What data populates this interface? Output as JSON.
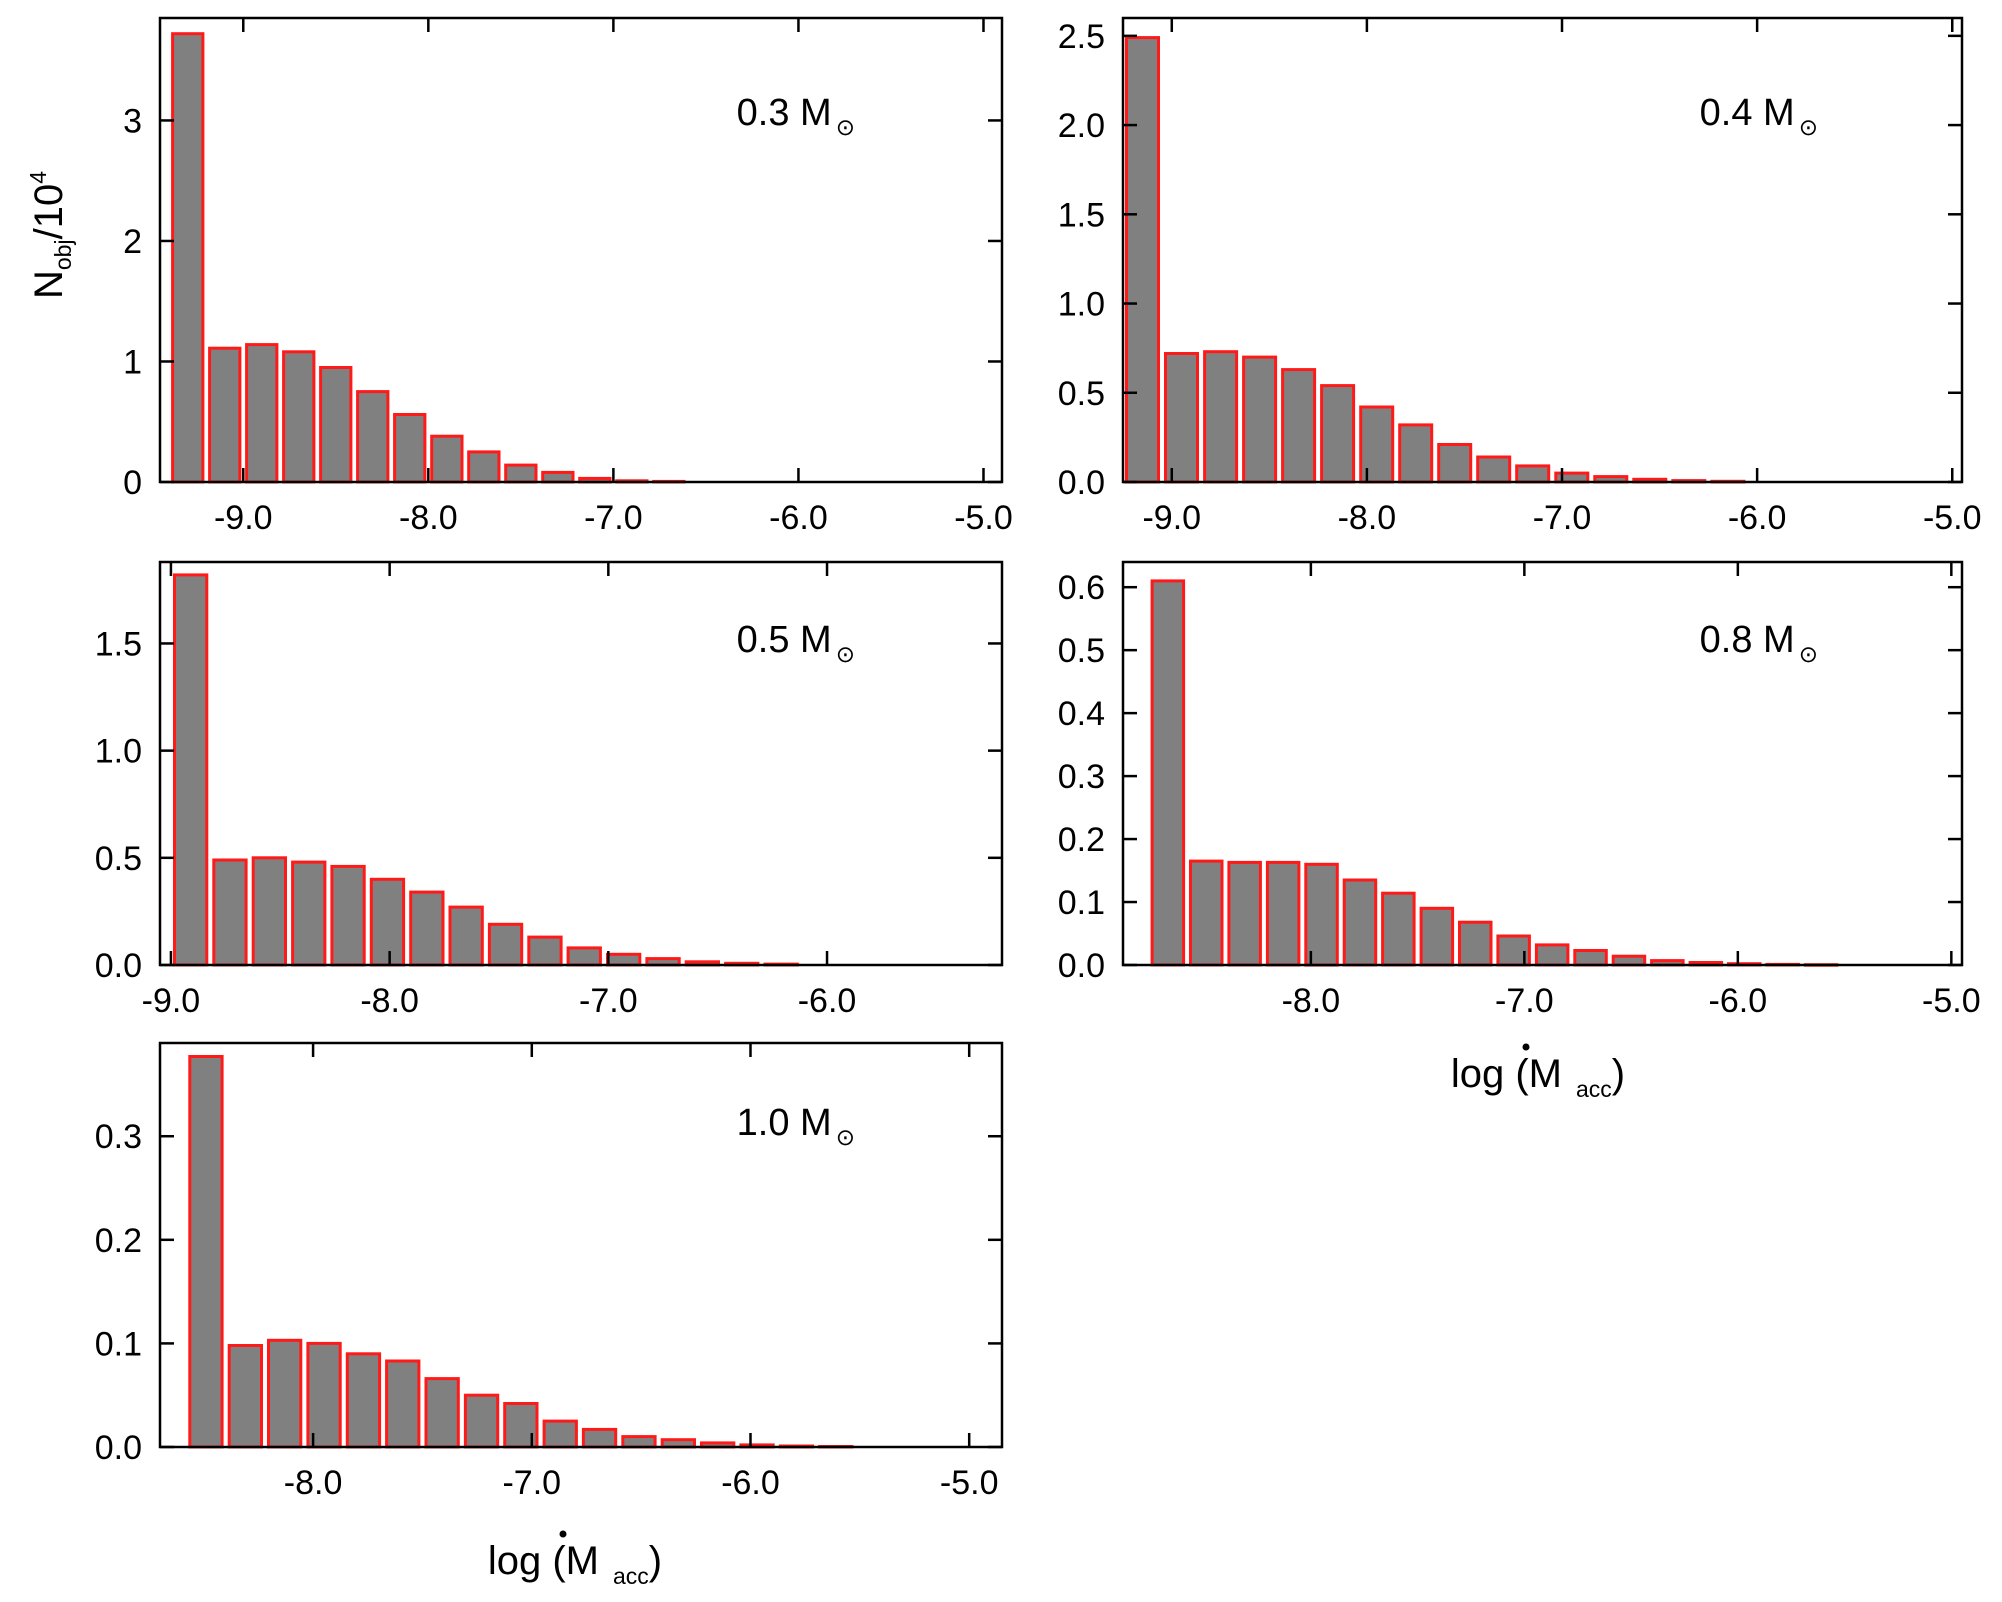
{
  "figure": {
    "ylabel": {
      "main": "N",
      "sub": "obj",
      "rest": "/10",
      "sup": "4"
    },
    "xlabel": {
      "prefix": "log (",
      "symbol": "M",
      "sub": "acc",
      "suffix": ")"
    },
    "solar_symbol": "⊙",
    "colors": {
      "bar_fill": "#808080",
      "bar_edge": "#ff1a1a",
      "axis": "#000000"
    }
  },
  "chart_data": [
    {
      "type": "bar",
      "title": "0.3 M",
      "xlim": [
        -9.45,
        -4.9
      ],
      "ylim": [
        0,
        3.85
      ],
      "bin_width": 0.2,
      "x": [
        -9.3,
        -9.1,
        -8.9,
        -8.7,
        -8.5,
        -8.3,
        -8.1,
        -7.9,
        -7.7,
        -7.5,
        -7.3,
        -7.1,
        -6.9,
        -6.7
      ],
      "values": [
        3.72,
        1.11,
        1.14,
        1.08,
        0.95,
        0.75,
        0.56,
        0.38,
        0.25,
        0.14,
        0.08,
        0.03,
        0.01,
        0.005
      ],
      "xticks": [
        -9.0,
        -8.0,
        -7.0,
        -6.0,
        -5.0
      ],
      "xtick_labels": [
        "-9.0",
        "-8.0",
        "-7.0",
        "-6.0",
        "-5.0"
      ],
      "yticks": [
        0,
        1,
        2,
        3
      ],
      "ytick_labels": [
        "0",
        "1",
        "2",
        "3"
      ],
      "xlabel": "",
      "ylabel": "Nobj/10^4"
    },
    {
      "type": "bar",
      "title": "0.4 M",
      "xlim": [
        -9.25,
        -4.95
      ],
      "ylim": [
        0,
        2.6
      ],
      "bin_width": 0.2,
      "x": [
        -9.15,
        -8.95,
        -8.75,
        -8.55,
        -8.35,
        -8.15,
        -7.95,
        -7.75,
        -7.55,
        -7.35,
        -7.15,
        -6.95,
        -6.75,
        -6.55,
        -6.35,
        -6.15
      ],
      "values": [
        2.49,
        0.72,
        0.73,
        0.7,
        0.63,
        0.54,
        0.42,
        0.32,
        0.21,
        0.14,
        0.09,
        0.05,
        0.03,
        0.015,
        0.008,
        0.004
      ],
      "xticks": [
        -9.0,
        -8.0,
        -7.0,
        -6.0,
        -5.0
      ],
      "xtick_labels": [
        "-9.0",
        "-8.0",
        "-7.0",
        "-6.0",
        "-5.0"
      ],
      "yticks": [
        0,
        0.5,
        1,
        1.5,
        2,
        2.5
      ],
      "ytick_labels": [
        "0.0",
        "0.5",
        "1.0",
        "1.5",
        "2.0",
        "2.5"
      ],
      "xlabel": "",
      "ylabel": ""
    },
    {
      "type": "bar",
      "title": "0.5 M",
      "xlim": [
        -9.05,
        -5.2
      ],
      "ylim": [
        0,
        1.88
      ],
      "bin_width": 0.18,
      "x": [
        -8.91,
        -8.73,
        -8.55,
        -8.37,
        -8.19,
        -8.01,
        -7.83,
        -7.65,
        -7.47,
        -7.29,
        -7.11,
        -6.93,
        -6.75,
        -6.57,
        -6.39,
        -6.21
      ],
      "values": [
        1.82,
        0.49,
        0.5,
        0.48,
        0.46,
        0.4,
        0.34,
        0.27,
        0.19,
        0.13,
        0.08,
        0.05,
        0.03,
        0.015,
        0.008,
        0.004
      ],
      "xticks": [
        -9.0,
        -8.0,
        -7.0,
        -6.0
      ],
      "xtick_labels": [
        "-9.0",
        "-8.0",
        "-7.0",
        "-6.0"
      ],
      "yticks": [
        0,
        0.5,
        1,
        1.5
      ],
      "ytick_labels": [
        "0.0",
        "0.5",
        "1.0",
        "1.5"
      ],
      "xlabel": "",
      "ylabel": ""
    },
    {
      "type": "bar",
      "title": "0.8 M",
      "xlim": [
        -8.88,
        -4.95
      ],
      "ylim": [
        0,
        0.64
      ],
      "bin_width": 0.18,
      "x": [
        -8.67,
        -8.49,
        -8.31,
        -8.13,
        -7.95,
        -7.77,
        -7.59,
        -7.41,
        -7.23,
        -7.05,
        -6.87,
        -6.69,
        -6.51,
        -6.33,
        -6.15,
        -5.97,
        -5.79,
        -5.61
      ],
      "values": [
        0.61,
        0.165,
        0.163,
        0.163,
        0.16,
        0.135,
        0.114,
        0.09,
        0.068,
        0.046,
        0.032,
        0.023,
        0.014,
        0.007,
        0.004,
        0.002,
        0.001,
        0.0005
      ],
      "xticks": [
        -8.0,
        -7.0,
        -6.0,
        -5.0
      ],
      "xtick_labels": [
        "-8.0",
        "-7.0",
        "-6.0",
        "-5.0"
      ],
      "yticks": [
        0,
        0.1,
        0.2,
        0.3,
        0.4,
        0.5,
        0.6
      ],
      "ytick_labels": [
        "0.0",
        "0.1",
        "0.2",
        "0.3",
        "0.4",
        "0.5",
        "0.6"
      ],
      "xlabel": "log (M acc)",
      "ylabel": ""
    },
    {
      "type": "bar",
      "title": "1.0 M",
      "xlim": [
        -8.7,
        -4.85
      ],
      "ylim": [
        0,
        0.39
      ],
      "bin_width": 0.18,
      "x": [
        -8.49,
        -8.31,
        -8.13,
        -7.95,
        -7.77,
        -7.59,
        -7.41,
        -7.23,
        -7.05,
        -6.87,
        -6.69,
        -6.51,
        -6.33,
        -6.15,
        -5.97,
        -5.79,
        -5.61
      ],
      "values": [
        0.377,
        0.098,
        0.103,
        0.1,
        0.09,
        0.083,
        0.066,
        0.05,
        0.042,
        0.025,
        0.017,
        0.01,
        0.007,
        0.004,
        0.002,
        0.001,
        0.0005
      ],
      "xticks": [
        -8.0,
        -7.0,
        -6.0,
        -5.0
      ],
      "xtick_labels": [
        "-8.0",
        "-7.0",
        "-6.0",
        "-5.0"
      ],
      "yticks": [
        0,
        0.1,
        0.2,
        0.3
      ],
      "ytick_labels": [
        "0.0",
        "0.1",
        "0.2",
        "0.3"
      ],
      "xlabel": "log (M acc)",
      "ylabel": ""
    }
  ]
}
